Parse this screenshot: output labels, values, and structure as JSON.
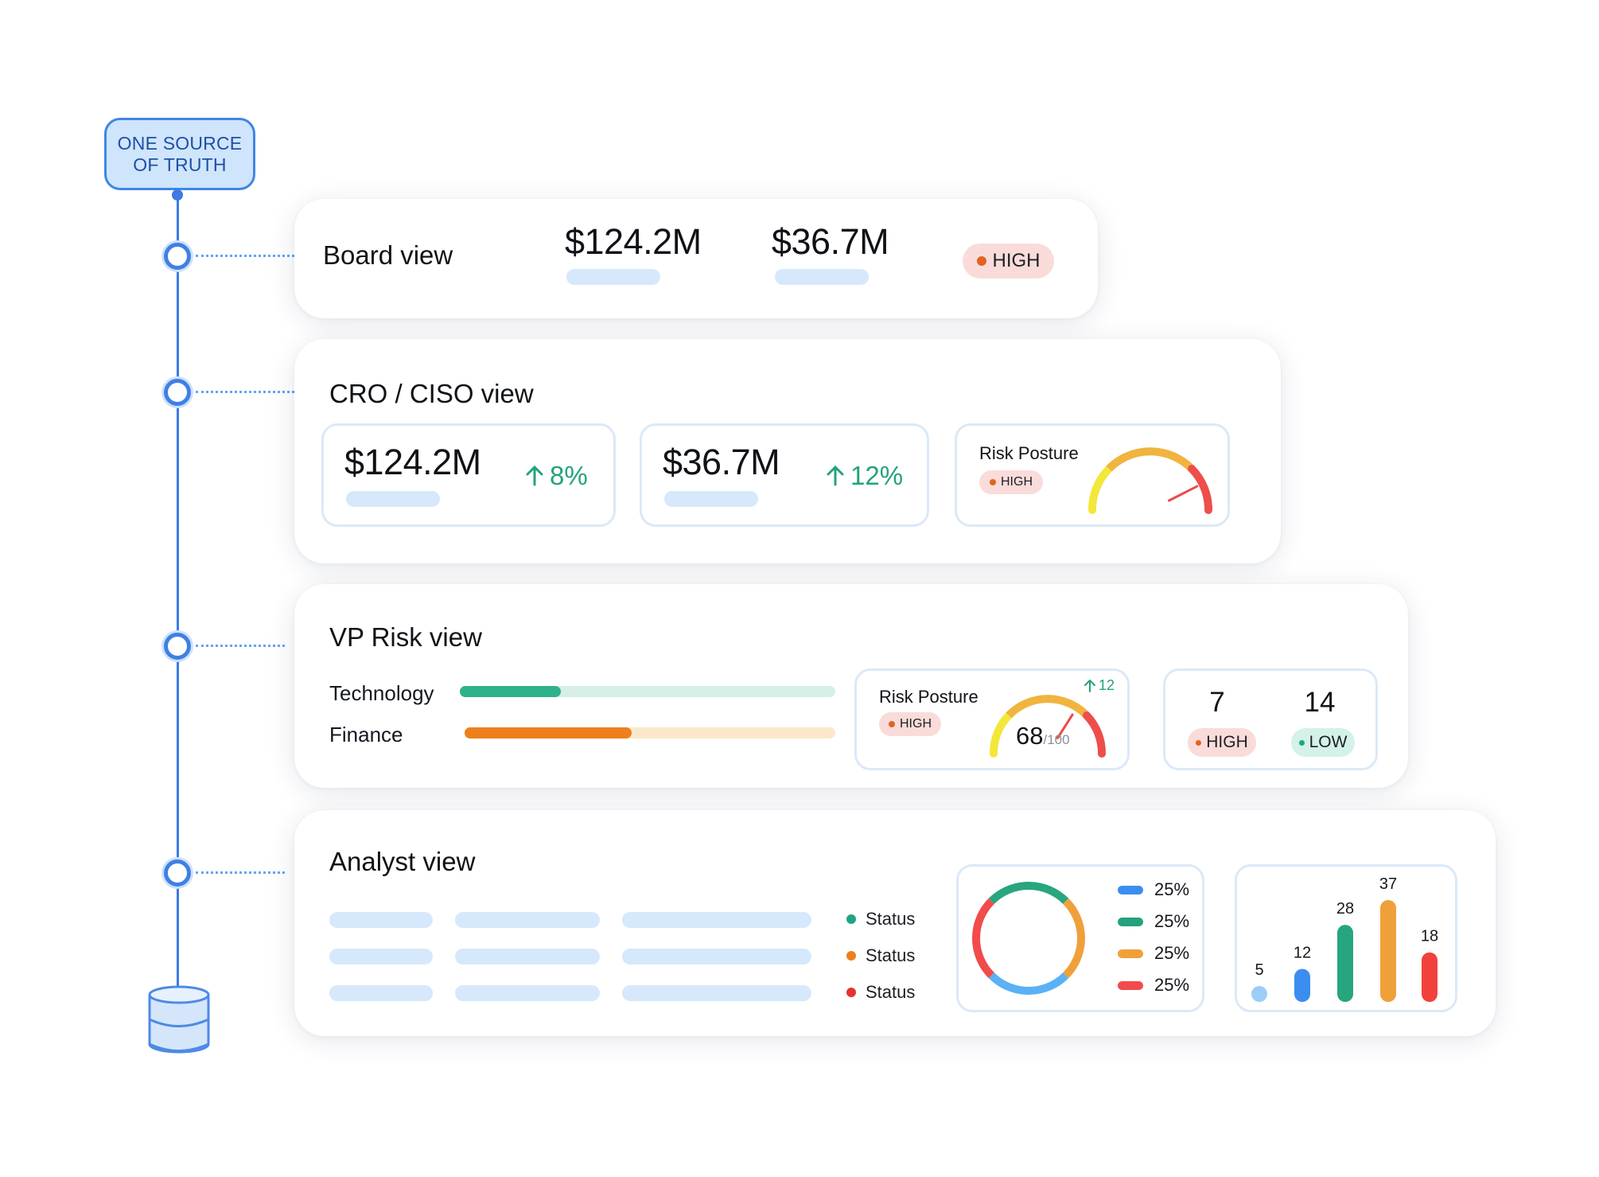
{
  "source": {
    "label": "ONE SOURCE\nOF TRUTH"
  },
  "board": {
    "title": "Board view",
    "value1": "$124.2M",
    "value2": "$36.7M",
    "badge": "HIGH"
  },
  "cro": {
    "title": "CRO / CISO view",
    "metric1": {
      "value": "$124.2M",
      "delta": "8%"
    },
    "metric2": {
      "value": "$36.7M",
      "delta": "12%"
    },
    "posture": {
      "label": "Risk Posture",
      "badge": "HIGH",
      "needle_fraction": 0.85
    }
  },
  "vp": {
    "title": "VP Risk view",
    "bars": [
      {
        "label": "Technology",
        "fraction": 0.27,
        "color": "#2fb18c",
        "track": "#d5efe8"
      },
      {
        "label": "Finance",
        "fraction": 0.45,
        "color": "#ee7f1c",
        "track": "#fbe8cb"
      }
    ],
    "posture": {
      "label": "Risk Posture",
      "badge": "HIGH",
      "delta": "12",
      "score": "68",
      "score_max": "/100",
      "score_value": 68
    },
    "counts": [
      {
        "value": "7",
        "badge": "HIGH"
      },
      {
        "value": "14",
        "badge": "LOW"
      }
    ]
  },
  "analyst": {
    "title": "Analyst view",
    "statuses": [
      {
        "label": "Status",
        "color": "#1fa583"
      },
      {
        "label": "Status",
        "color": "#ee7f1c"
      },
      {
        "label": "Status",
        "color": "#e5332f"
      }
    ],
    "legend": [
      {
        "label": "25%",
        "color": "#3b8ef0"
      },
      {
        "label": "25%",
        "color": "#23a27d"
      },
      {
        "label": "25%",
        "color": "#f0a03a"
      },
      {
        "label": "25%",
        "color": "#f14b4b"
      }
    ]
  },
  "chart_data": [
    {
      "type": "pie",
      "categories": [
        "",
        "",
        "",
        ""
      ],
      "values": [
        25,
        25,
        25,
        25
      ],
      "colors": [
        "#29a57f",
        "#f0a03a",
        "#5ab1f5",
        "#f14b4b"
      ]
    },
    {
      "type": "bar",
      "values": [
        5,
        12,
        28,
        37,
        18
      ],
      "labels": [
        "5",
        "12",
        "28",
        "37",
        "18"
      ],
      "colors": [
        "#9dcdf7",
        "#3b8ef0",
        "#27a57f",
        "#f0a03a",
        "#f2413c"
      ]
    }
  ]
}
